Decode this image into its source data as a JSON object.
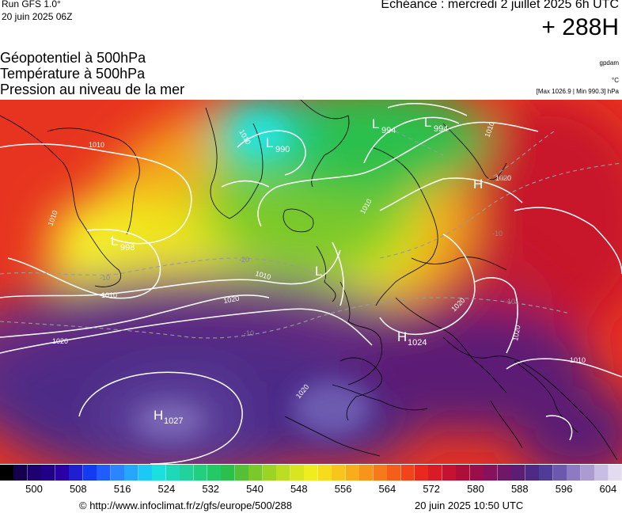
{
  "header": {
    "run": "Run GFS 1.0°",
    "run_date": "20 juin 2025 06Z",
    "echeance": "Echéance : mercredi 2 juillet 2025 6h UTC",
    "forecast_hour": "+ 288H"
  },
  "parameters": {
    "geopotential": "Géopotentiel à 500hPa",
    "temperature": "Température à 500hPa",
    "pressure": "Pression au niveau de la mer"
  },
  "units": {
    "geopotential": "gpdam",
    "temperature": "°C",
    "pressure_range": "[Max 1026.9 | Min 990.3] hPa"
  },
  "map": {
    "pressure_centers": [
      {
        "type": "L",
        "value": "990"
      },
      {
        "type": "L",
        "value": "994"
      },
      {
        "type": "L",
        "value": "994"
      },
      {
        "type": "L",
        "value": "998"
      },
      {
        "type": "L",
        "value": ""
      },
      {
        "type": "H",
        "value": "1024"
      },
      {
        "type": "H",
        "value": "1027"
      },
      {
        "type": "H",
        "value": ""
      }
    ],
    "isobar_labels": [
      "1010",
      "1010",
      "1010",
      "1010",
      "1010",
      "1010",
      "1010",
      "1020",
      "1020",
      "1020",
      "1020",
      "1020",
      "1020",
      "1010"
    ],
    "isotherm_labels": [
      "-20",
      "-20",
      "-10",
      "-10",
      "-10",
      "-10"
    ]
  },
  "scale": {
    "colors": [
      "#000000",
      "#14004f",
      "#1e006e",
      "#210087",
      "#2a00a6",
      "#1f1ed0",
      "#123cf3",
      "#1f5dff",
      "#2b85ff",
      "#25a6ff",
      "#1cc8f5",
      "#1ae0e0",
      "#1fd8b8",
      "#21d39a",
      "#22cf7f",
      "#23c966",
      "#2bc04c",
      "#54c035",
      "#7ac92b",
      "#9bd425",
      "#bddd22",
      "#d8e51f",
      "#f0ed1f",
      "#f7dc1d",
      "#f8c51b",
      "#f8ad1a",
      "#f7951a",
      "#f67a1a",
      "#f55e1a",
      "#f2431b",
      "#ea291e",
      "#d91a27",
      "#c51230",
      "#b00e3a",
      "#9b0e4c",
      "#86125e",
      "#711769",
      "#5c1d74",
      "#4e2a86",
      "#4f3c98",
      "#6a59ae",
      "#8c7bc2",
      "#ab9bd3",
      "#c8bde2",
      "#e3dbef"
    ],
    "labels": [
      "500",
      "508",
      "516",
      "524",
      "532",
      "540",
      "548",
      "556",
      "564",
      "572",
      "580",
      "588",
      "596",
      "604"
    ]
  },
  "footer": {
    "copyright": "© http://www.infoclimat.fr/z/gfs/europe/500/288",
    "generated": "20 juin 2025 10:50 UTC"
  }
}
